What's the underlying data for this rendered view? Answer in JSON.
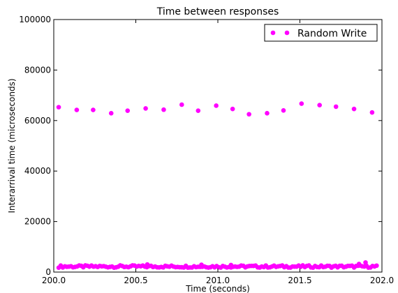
{
  "chart_data": {
    "type": "scatter",
    "title": "Time between responses",
    "xlabel": "Time (seconds)",
    "ylabel": "Interarrival time (microseconds)",
    "xlim": [
      200.0,
      202.0
    ],
    "ylim": [
      0,
      100000
    ],
    "x_ticks": [
      "200.0",
      "200.5",
      "201.0",
      "201.5",
      "202.0"
    ],
    "x_tick_values": [
      200.0,
      200.5,
      201.0,
      201.5,
      202.0
    ],
    "y_ticks": [
      "0",
      "20000",
      "40000",
      "60000",
      "80000",
      "100000"
    ],
    "y_tick_values": [
      0,
      20000,
      40000,
      60000,
      80000,
      100000
    ],
    "grid": false,
    "legend_position": "top-right",
    "series": [
      {
        "name": "Random Write",
        "color": "#ff00ff",
        "marker": "circle",
        "high_points": {
          "x": [
            200.03,
            200.14,
            200.24,
            200.35,
            200.45,
            200.56,
            200.67,
            200.78,
            200.88,
            200.99,
            201.09,
            201.19,
            201.3,
            201.4,
            201.51,
            201.62,
            201.72,
            201.83,
            201.94
          ],
          "y": [
            65300,
            64200,
            64200,
            62900,
            63900,
            64800,
            64300,
            66300,
            63900,
            65900,
            64600,
            62500,
            62900,
            64000,
            66700,
            66100,
            65500,
            64600,
            63200
          ]
        },
        "low_cluster": {
          "x_start": 200.03,
          "x_end": 201.97,
          "x_step": 0.0125,
          "y_base": 2200,
          "y_spread": 900,
          "spikes": [
            {
              "x": 200.57,
              "y": 3000
            },
            {
              "x": 200.9,
              "y": 2900
            },
            {
              "x": 201.08,
              "y": 2800
            },
            {
              "x": 201.86,
              "y": 3200
            },
            {
              "x": 201.9,
              "y": 3800
            }
          ]
        }
      }
    ]
  }
}
